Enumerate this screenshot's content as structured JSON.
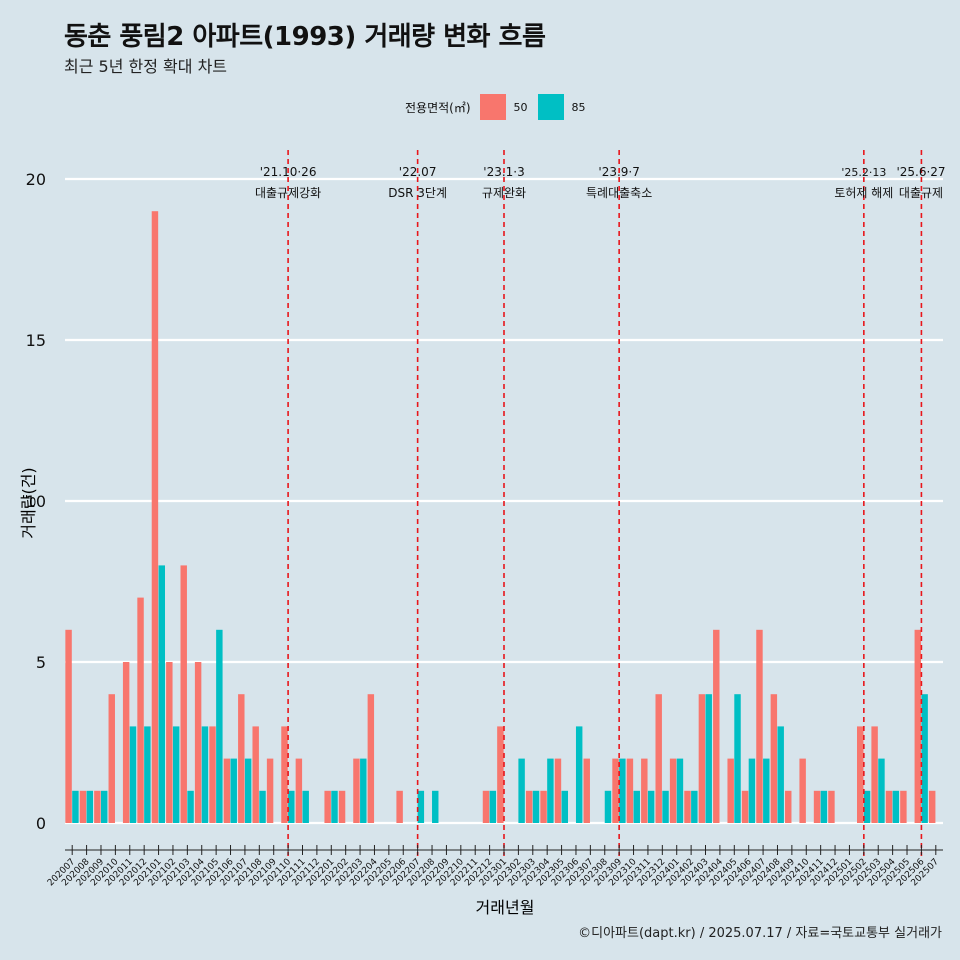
{
  "header": {
    "title": "동춘 풍림2 아파트(1993) 거래량 변화 흐름",
    "subtitle": "최근 5년 한정 확대 차트"
  },
  "caption": "©디아파트(dapt.kr) / 2025.07.17 / 자료=국토교통부 실거래가",
  "legend": {
    "title": "전용면적(㎡)",
    "items": [
      {
        "label": "50",
        "color": "#f8766d"
      },
      {
        "label": "85",
        "color": "#00bfc4"
      }
    ]
  },
  "chart_data": {
    "type": "bar",
    "xlabel": "거래년월",
    "ylabel": "거래량(건)",
    "ylim": [
      0,
      20
    ],
    "yticks": [
      0,
      5,
      10,
      15,
      20
    ],
    "grid": true,
    "legend_position": "top",
    "categories": [
      "202007",
      "202008",
      "202009",
      "202010",
      "202011",
      "202012",
      "202101",
      "202102",
      "202103",
      "202104",
      "202105",
      "202106",
      "202107",
      "202108",
      "202109",
      "202110",
      "202111",
      "202112",
      "202201",
      "202202",
      "202203",
      "202204",
      "202205",
      "202206",
      "202207",
      "202208",
      "202209",
      "202210",
      "202211",
      "202212",
      "202301",
      "202302",
      "202303",
      "202304",
      "202305",
      "202306",
      "202307",
      "202308",
      "202309",
      "202310",
      "202311",
      "202312",
      "202401",
      "202402",
      "202403",
      "202404",
      "202405",
      "202406",
      "202407",
      "202408",
      "202409",
      "202410",
      "202411",
      "202412",
      "202501",
      "202502",
      "202503",
      "202504",
      "202505",
      "202506",
      "202507"
    ],
    "series": [
      {
        "name": "50",
        "color": "#f8766d",
        "values": [
          6,
          1,
          1,
          4,
          5,
          7,
          19,
          5,
          8,
          5,
          3,
          2,
          4,
          3,
          2,
          3,
          2,
          0,
          1,
          1,
          2,
          4,
          0,
          1,
          0,
          0,
          0,
          0,
          0,
          1,
          3,
          0,
          1,
          1,
          2,
          0,
          2,
          0,
          2,
          2,
          2,
          4,
          2,
          1,
          4,
          6,
          2,
          1,
          6,
          4,
          1,
          2,
          1,
          1,
          0,
          3,
          3,
          1,
          1,
          6,
          1
        ]
      },
      {
        "name": "85",
        "color": "#00bfc4",
        "values": [
          1,
          1,
          1,
          0,
          3,
          3,
          8,
          3,
          1,
          3,
          6,
          2,
          2,
          1,
          0,
          1,
          1,
          0,
          1,
          0,
          2,
          0,
          0,
          0,
          1,
          1,
          0,
          0,
          0,
          1,
          0,
          2,
          1,
          2,
          1,
          3,
          0,
          1,
          2,
          1,
          1,
          1,
          2,
          1,
          4,
          0,
          4,
          2,
          2,
          3,
          0,
          0,
          1,
          0,
          0,
          1,
          2,
          1,
          0,
          4,
          0
        ]
      }
    ],
    "annotations": [
      {
        "category": "202110",
        "date": "'21.10·26",
        "label": "대출규제강화"
      },
      {
        "category": "202207",
        "date": "'22.07",
        "label": "DSR 3단계"
      },
      {
        "category": "202301",
        "date": "'23.1·3",
        "label": "규제완화"
      },
      {
        "category": "202309",
        "date": "'23.9·7",
        "label": "특례대출축소"
      },
      {
        "category": "202502",
        "date": "'25.2·13",
        "label": "토허제 해제"
      },
      {
        "category": "202506",
        "date": "'25.6·27",
        "label": "대출규제"
      }
    ]
  }
}
